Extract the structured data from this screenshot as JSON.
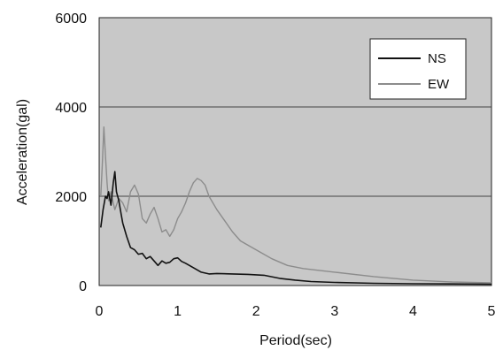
{
  "chart_data": {
    "type": "line",
    "xlabel": "Period(sec)",
    "ylabel": "Acceleration(gal)",
    "xlim": [
      0,
      5
    ],
    "ylim": [
      0,
      6000
    ],
    "x_ticks": [
      "0",
      "1",
      "2",
      "3",
      "4",
      "5"
    ],
    "y_ticks": [
      "0",
      "2000",
      "4000",
      "6000"
    ],
    "grid": "horizontal",
    "legend_position": "top-right",
    "background": "#c8c8c8",
    "series": [
      {
        "name": "NS",
        "color": "#111111",
        "x": [
          0.02,
          0.05,
          0.08,
          0.1,
          0.12,
          0.15,
          0.18,
          0.2,
          0.22,
          0.25,
          0.28,
          0.3,
          0.35,
          0.4,
          0.45,
          0.5,
          0.55,
          0.6,
          0.65,
          0.7,
          0.75,
          0.8,
          0.85,
          0.9,
          0.95,
          1.0,
          1.05,
          1.1,
          1.2,
          1.3,
          1.4,
          1.5,
          1.7,
          1.9,
          2.1,
          2.3,
          2.5,
          2.7,
          3.0,
          3.5,
          4.0,
          4.5,
          5.0
        ],
        "y": [
          1300,
          1700,
          2000,
          1950,
          2100,
          1800,
          2300,
          2550,
          2100,
          1900,
          1600,
          1400,
          1100,
          850,
          800,
          700,
          720,
          600,
          650,
          550,
          450,
          550,
          500,
          520,
          600,
          620,
          540,
          500,
          400,
          300,
          260,
          270,
          260,
          250,
          230,
          160,
          120,
          90,
          70,
          50,
          40,
          35,
          30
        ]
      },
      {
        "name": "EW",
        "color": "#8c8c8c",
        "x": [
          0.02,
          0.04,
          0.06,
          0.08,
          0.1,
          0.12,
          0.15,
          0.18,
          0.2,
          0.25,
          0.3,
          0.35,
          0.4,
          0.45,
          0.5,
          0.55,
          0.6,
          0.65,
          0.7,
          0.75,
          0.8,
          0.85,
          0.9,
          0.95,
          1.0,
          1.05,
          1.1,
          1.15,
          1.2,
          1.25,
          1.3,
          1.35,
          1.4,
          1.5,
          1.6,
          1.7,
          1.8,
          2.0,
          2.2,
          2.4,
          2.6,
          3.0,
          3.5,
          4.0,
          4.5,
          5.0
        ],
        "y": [
          2000,
          2700,
          3550,
          2900,
          2300,
          1900,
          2100,
          1850,
          1700,
          1950,
          1850,
          1650,
          2100,
          2250,
          2050,
          1500,
          1400,
          1600,
          1750,
          1500,
          1200,
          1250,
          1100,
          1250,
          1500,
          1650,
          1850,
          2100,
          2300,
          2400,
          2350,
          2250,
          2000,
          1700,
          1450,
          1200,
          1000,
          800,
          600,
          450,
          380,
          300,
          200,
          120,
          80,
          60
        ]
      }
    ]
  }
}
